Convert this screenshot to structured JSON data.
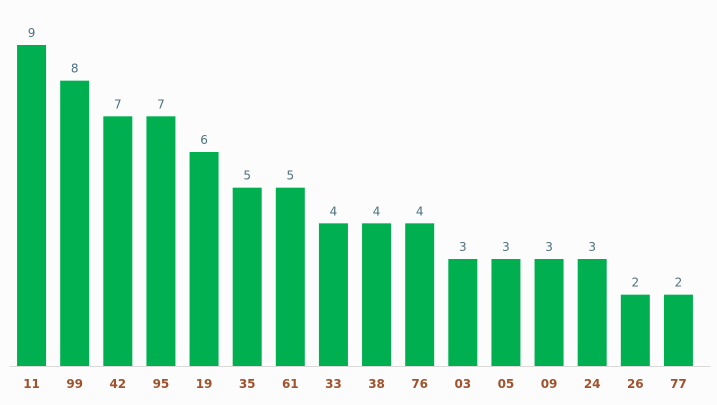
{
  "chart_data": {
    "type": "bar",
    "title": "",
    "xlabel": "",
    "ylabel": "",
    "categories": [
      "11",
      "99",
      "42",
      "95",
      "19",
      "35",
      "61",
      "33",
      "38",
      "76",
      "03",
      "05",
      "09",
      "24",
      "26",
      "77"
    ],
    "values": [
      9,
      8,
      7,
      7,
      6,
      5,
      5,
      4,
      4,
      4,
      3,
      3,
      3,
      3,
      2,
      2
    ],
    "ylim": [
      0,
      9
    ],
    "grid": false,
    "legend": "none",
    "data_labels": true,
    "colors": {
      "bar": "#00b050",
      "value_label": "#4f7280",
      "tick_label": "#a0522d",
      "background": "#fcfcfc",
      "baseline": "#d9d9d9"
    }
  }
}
